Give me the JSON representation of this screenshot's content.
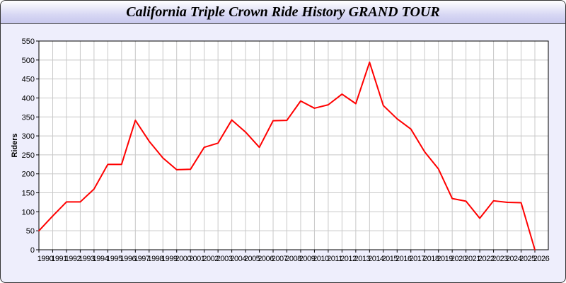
{
  "window": {
    "title": "California Triple Crown Ride History GRAND TOUR"
  },
  "chart_data": {
    "type": "line",
    "title": "California Triple Crown Ride History GRAND TOUR",
    "xlabel": "",
    "ylabel": "Riders",
    "ylim": [
      0,
      550
    ],
    "yticks": [
      0,
      50,
      100,
      150,
      200,
      250,
      300,
      350,
      400,
      450,
      500,
      550
    ],
    "xlim": [
      1990,
      2027
    ],
    "grid": true,
    "series": [
      {
        "color": "#ff0000",
        "x": [
          1990,
          1991,
          1992,
          1993,
          1994,
          1995,
          1996,
          1997,
          1998,
          1999,
          2000,
          2001,
          2002,
          2003,
          2004,
          2005,
          2006,
          2007,
          2008,
          2009,
          2010,
          2011,
          2012,
          2013,
          2014,
          2015,
          2016,
          2017,
          2018,
          2019,
          2020,
          2021,
          2022,
          2023,
          2024,
          2025,
          2026
        ],
        "values": [
          50,
          89,
          126,
          126,
          160,
          225,
          225,
          341,
          286,
          242,
          211,
          212,
          270,
          281,
          342,
          310,
          270,
          340,
          341,
          392,
          373,
          382,
          410,
          385,
          494,
          380,
          345,
          318,
          258,
          213,
          135,
          128,
          83,
          129,
          125,
          124,
          0
        ]
      }
    ]
  }
}
